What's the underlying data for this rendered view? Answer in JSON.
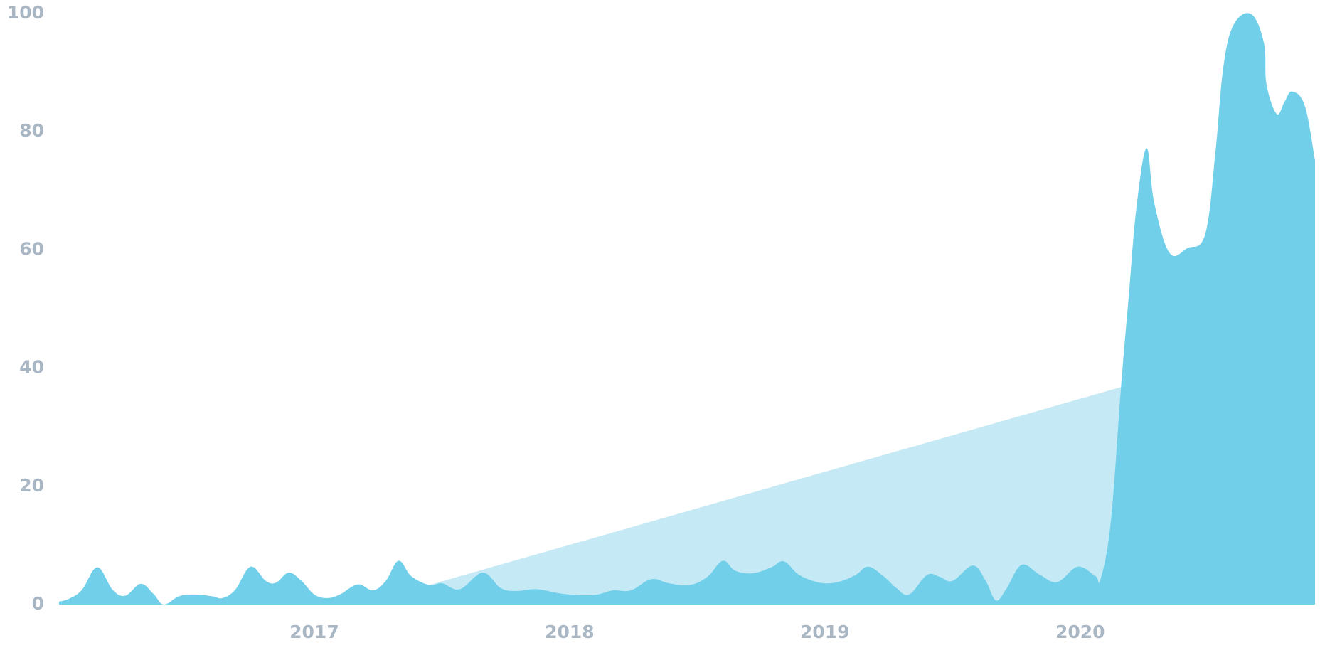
{
  "chart_data": {
    "type": "area",
    "xlim": [
      2016,
      2020.92
    ],
    "xticks": [
      2017,
      2018,
      2019,
      2020
    ],
    "ylim": [
      0,
      100
    ],
    "yticks": [
      0,
      20,
      40,
      60,
      80,
      100
    ],
    "grid": false,
    "series": [
      {
        "color": "#c6eaf5",
        "x": [
          2017.45,
          2020.16
        ],
        "values": [
          3.3,
          36.8
        ]
      },
      {
        "color": "#72cfea",
        "x": [
          2016.0,
          2016.04,
          2016.09,
          2016.15,
          2016.21,
          2016.26,
          2016.32,
          2016.37,
          2016.41,
          2016.47,
          2016.53,
          2016.6,
          2016.64,
          2016.69,
          2016.75,
          2016.81,
          2016.85,
          2016.9,
          2016.95,
          2017.0,
          2017.05,
          2017.1,
          2017.17,
          2017.23,
          2017.28,
          2017.33,
          2017.38,
          2017.45,
          2017.5,
          2017.57,
          2017.66,
          2017.73,
          2017.79,
          2017.87,
          2017.96,
          2018.04,
          2018.11,
          2018.17,
          2018.24,
          2018.32,
          2018.39,
          2018.47,
          2018.54,
          2018.6,
          2018.65,
          2018.72,
          2018.79,
          2018.84,
          2018.9,
          2018.98,
          2019.05,
          2019.12,
          2019.17,
          2019.23,
          2019.28,
          2019.33,
          2019.4,
          2019.45,
          2019.5,
          2019.58,
          2019.63,
          2019.67,
          2019.71,
          2019.77,
          2019.84,
          2019.91,
          2019.99,
          2020.06,
          2020.08,
          2020.12,
          2020.16,
          2020.19,
          2020.22,
          2020.26,
          2020.29,
          2020.35,
          2020.42,
          2020.49,
          2020.53,
          2020.56,
          2020.6,
          2020.67,
          2020.72,
          2020.73,
          2020.77,
          2020.8,
          2020.83,
          2020.88,
          2020.92
        ],
        "values": [
          0.5,
          1,
          2.5,
          6.3,
          2.5,
          1.5,
          3.5,
          1.8,
          0,
          1.4,
          1.7,
          1.4,
          1.1,
          2.5,
          6.4,
          4,
          3.7,
          5.4,
          4,
          1.7,
          1.1,
          1.7,
          3.4,
          2.4,
          4,
          7.4,
          4.8,
          3.3,
          3.6,
          2.6,
          5.4,
          2.8,
          2.3,
          2.6,
          1.9,
          1.6,
          1.7,
          2.4,
          2.4,
          4.3,
          3.6,
          3.3,
          4.7,
          7.4,
          5.7,
          5.3,
          6.3,
          7.3,
          5,
          3.7,
          3.8,
          5,
          6.4,
          4.8,
          2.8,
          1.7,
          5,
          4.7,
          4,
          6.6,
          4,
          0.7,
          2.6,
          6.7,
          5.1,
          3.8,
          6.4,
          4.8,
          4.3,
          14,
          36.8,
          52,
          67,
          77.2,
          68,
          59.5,
          60.3,
          62.7,
          76.6,
          90.6,
          98,
          99.9,
          95,
          88,
          83,
          85,
          86.8,
          84.4,
          75.2
        ]
      }
    ]
  }
}
